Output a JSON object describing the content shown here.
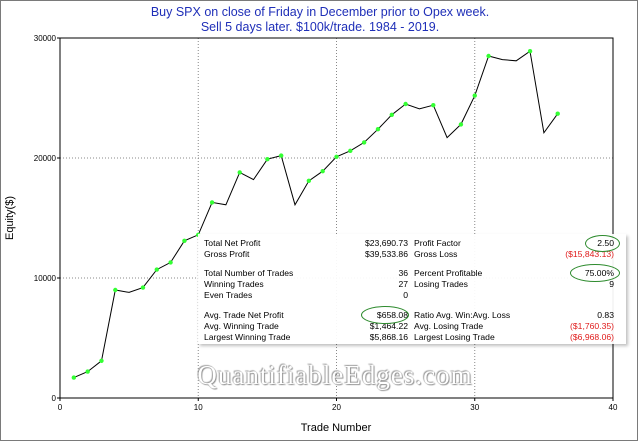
{
  "title_lines": [
    "Buy SPX on close of Friday in December prior to Opex week.",
    "Sell 5 days later. $100k/trade. 1984 - 2019."
  ],
  "watermark": "QuantifiableEdges.com",
  "stats": {
    "left": [
      {
        "label": "Total Net Profit",
        "value": "$23,690.73"
      },
      {
        "label": "Gross Profit",
        "value": "$39,533.86"
      },
      {
        "label": "Total Number of Trades",
        "value": "36"
      },
      {
        "label": "Winning Trades",
        "value": "27"
      },
      {
        "label": "Even Trades",
        "value": "0"
      },
      {
        "label": "Avg. Trade Net Profit",
        "value": "$658.08"
      },
      {
        "label": "Avg. Winning Trade",
        "value": "$1,464.22"
      },
      {
        "label": "Largest Winning Trade",
        "value": "$5,868.16"
      }
    ],
    "right": [
      {
        "label": "Profit Factor",
        "value": "2.50"
      },
      {
        "label": "Gross Loss",
        "value": "($15,843.13)"
      },
      {
        "label": "Percent Profitable",
        "value": "75.00%"
      },
      {
        "label": "Losing Trades",
        "value": "9"
      },
      {
        "label": "Ratio Avg. Win:Avg. Loss",
        "value": "0.83"
      },
      {
        "label": "Avg. Losing Trade",
        "value": "($1,760.35)"
      },
      {
        "label": "Largest Losing Trade",
        "value": "($6,968.06)"
      }
    ]
  },
  "chart_data": {
    "type": "line",
    "title": "Buy SPX on close of Friday in December prior to Opex week. Sell 5 days later. $100k/trade. 1984 - 2019.",
    "xlabel": "Trade Number",
    "ylabel": "Equity($)",
    "xlim": [
      0,
      40
    ],
    "ylim": [
      0,
      30000
    ],
    "xticks": [
      0,
      10,
      20,
      30,
      40
    ],
    "yticks": [
      0,
      10000,
      20000,
      30000
    ],
    "grid": true,
    "line_color": "#000000",
    "marker_color": "#33ff33",
    "x": [
      1,
      2,
      3,
      4,
      5,
      6,
      7,
      8,
      9,
      10,
      11,
      12,
      13,
      14,
      15,
      16,
      17,
      18,
      19,
      20,
      21,
      22,
      23,
      24,
      25,
      26,
      27,
      28,
      29,
      30,
      31,
      32,
      33,
      34,
      35,
      36
    ],
    "y": [
      1700,
      2200,
      3100,
      9000,
      8800,
      9200,
      10700,
      11300,
      13100,
      13600,
      16300,
      16100,
      18800,
      18200,
      19900,
      20200,
      16100,
      18100,
      18900,
      20100,
      20600,
      21300,
      22400,
      23600,
      24500,
      24100,
      24400,
      21700,
      22800,
      25200,
      28500,
      28200,
      28100,
      28900,
      22100,
      23690.73
    ],
    "win": [
      true,
      true,
      true,
      true,
      false,
      true,
      true,
      true,
      true,
      true,
      true,
      false,
      true,
      false,
      true,
      true,
      false,
      true,
      true,
      true,
      true,
      true,
      true,
      true,
      true,
      false,
      true,
      false,
      true,
      true,
      true,
      false,
      false,
      true,
      false,
      true
    ]
  }
}
